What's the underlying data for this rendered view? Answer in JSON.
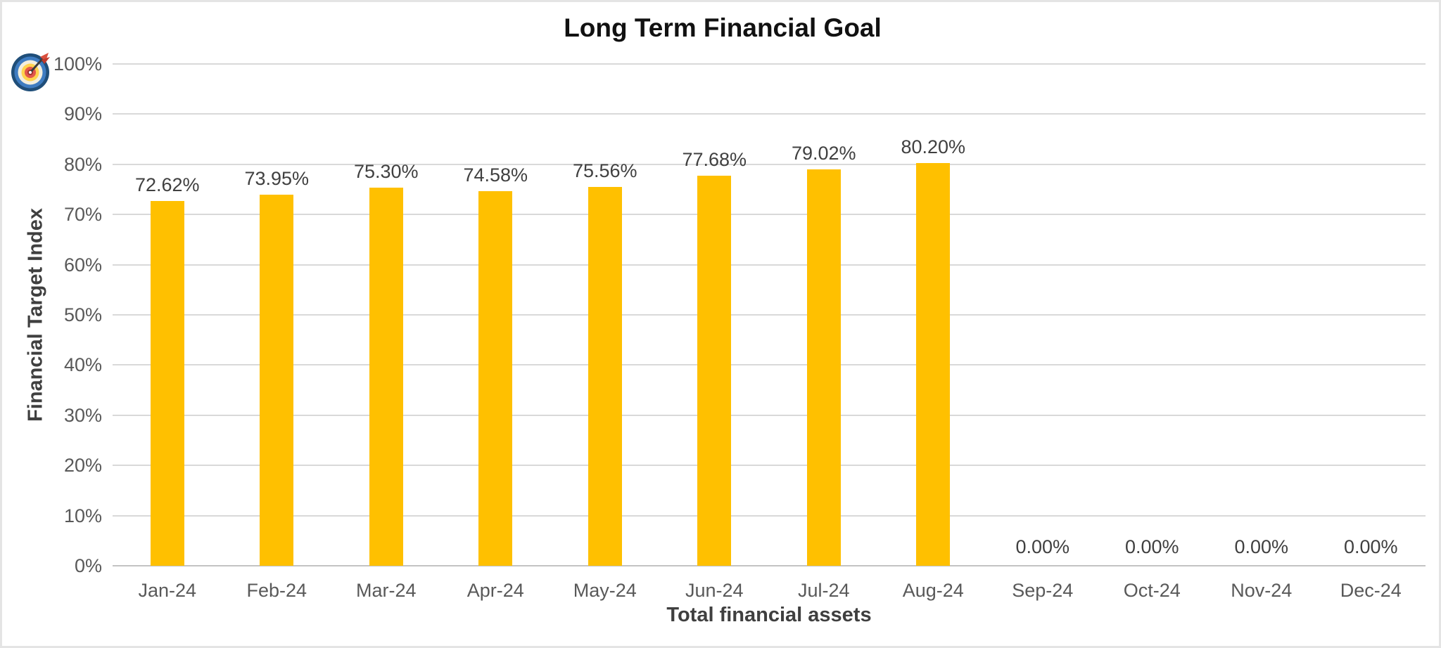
{
  "chart": {
    "title": "Long Term Financial Goal",
    "icon": "dartboard-target"
  },
  "chart_data": {
    "type": "bar",
    "title": "Long Term Financial Goal",
    "xlabel": "Total financial assets",
    "ylabel": "Financial Target Index",
    "categories": [
      "Jan-24",
      "Feb-24",
      "Mar-24",
      "Apr-24",
      "May-24",
      "Jun-24",
      "Jul-24",
      "Aug-24",
      "Sep-24",
      "Oct-24",
      "Nov-24",
      "Dec-24"
    ],
    "values": [
      72.62,
      73.95,
      75.3,
      74.58,
      75.56,
      77.68,
      79.02,
      80.2,
      0.0,
      0.0,
      0.0,
      0.0
    ],
    "data_labels": [
      "72.62%",
      "73.95%",
      "75.30%",
      "74.58%",
      "75.56%",
      "77.68%",
      "79.02%",
      "80.20%",
      "0.00%",
      "0.00%",
      "0.00%",
      "0.00%"
    ],
    "y_ticks": [
      "0%",
      "10%",
      "20%",
      "30%",
      "40%",
      "50%",
      "60%",
      "70%",
      "80%",
      "90%",
      "100%"
    ],
    "y_tick_values": [
      0,
      10,
      20,
      30,
      40,
      50,
      60,
      70,
      80,
      90,
      100
    ],
    "ylim": [
      0,
      100
    ],
    "grid": true,
    "legend_position": "none",
    "bar_color": "#FFC000",
    "gridline_color": "#D9D9D9",
    "tick_text_color": "#595959",
    "label_text_color": "#404040",
    "title_text_color": "#111111"
  }
}
